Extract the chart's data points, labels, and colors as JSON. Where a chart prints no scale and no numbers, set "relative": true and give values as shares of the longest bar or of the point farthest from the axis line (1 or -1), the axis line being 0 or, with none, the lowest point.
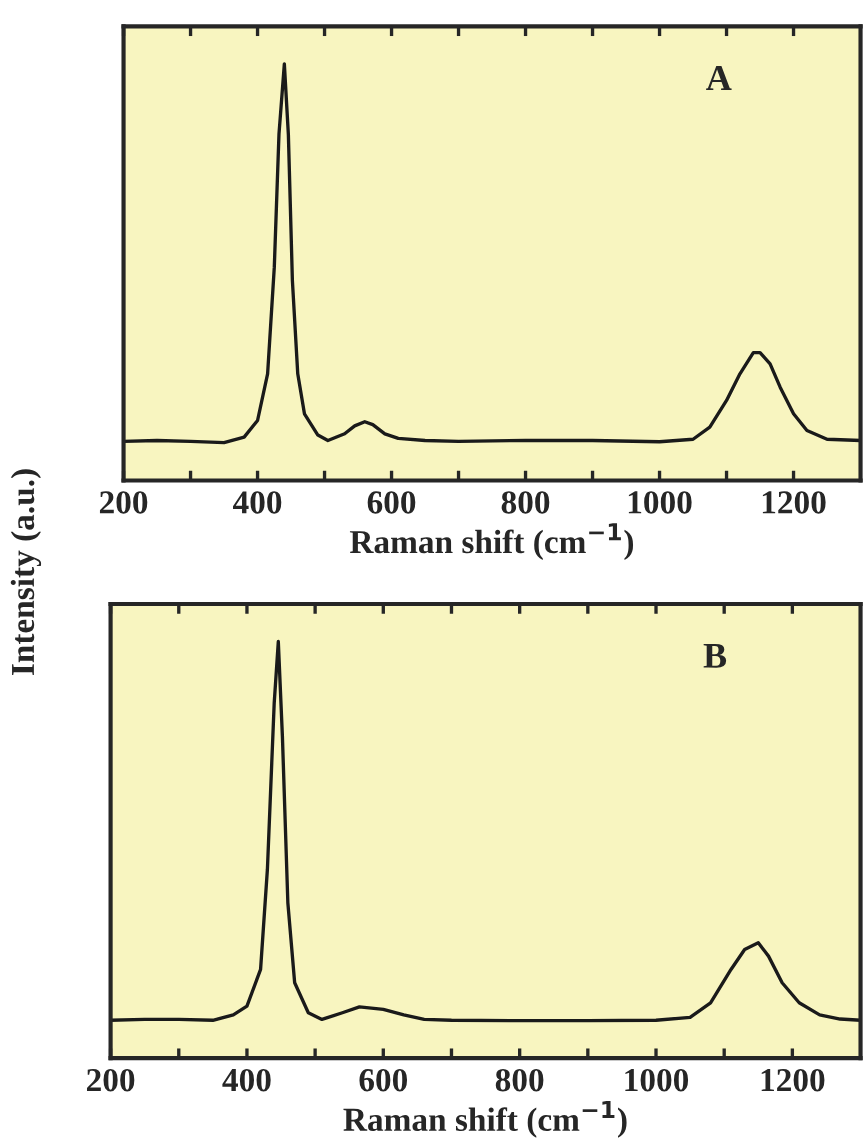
{
  "chart_data": [
    {
      "type": "line",
      "relative": true,
      "ylabel": "Intensity (a.u.)",
      "xlabel": "Raman shift (cm$^{−1}$)",
      "annotations": [
        "A"
      ],
      "tick_labels": "x",
      "xlim": [
        200,
        1300
      ],
      "xticks": [
        200,
        {
          "value": 300,
          "label": null
        },
        400,
        {
          "value": 500,
          "label": null
        },
        600,
        {
          "value": 700,
          "label": null
        },
        800,
        {
          "value": 900,
          "label": null
        },
        1000,
        {
          "value": 1100,
          "label": null
        },
        1200
      ],
      "series": [
        {
          "color": "#1a1a1a",
          "x": [
            200,
            250,
            300,
            350,
            380,
            400,
            415,
            425,
            432,
            440,
            446,
            452,
            460,
            470,
            490,
            505,
            530,
            545,
            560,
            572,
            590,
            610,
            650,
            700,
            800,
            900,
            1000,
            1050,
            1075,
            1100,
            1120,
            1140,
            1150,
            1165,
            1180,
            1200,
            1220,
            1250,
            1300
          ],
          "values": [
            0.094,
            0.096,
            0.094,
            0.091,
            0.104,
            0.144,
            0.256,
            0.512,
            0.832,
            1.0,
            0.83,
            0.48,
            0.256,
            0.16,
            0.109,
            0.096,
            0.112,
            0.131,
            0.141,
            0.134,
            0.112,
            0.101,
            0.096,
            0.094,
            0.096,
            0.096,
            0.093,
            0.099,
            0.128,
            0.192,
            0.256,
            0.307,
            0.307,
            0.28,
            0.224,
            0.16,
            0.12,
            0.099,
            0.096
          ]
        }
      ]
    },
    {
      "type": "line",
      "relative": true,
      "xlabel": "Raman shift (cm$^{−1}$)",
      "annotations": [
        "B"
      ],
      "tick_labels": "x",
      "xlim": [
        200,
        1300
      ],
      "xticks": [
        200,
        {
          "value": 300,
          "label": null
        },
        400,
        {
          "value": 500,
          "label": null
        },
        600,
        {
          "value": 700,
          "label": null
        },
        800,
        {
          "value": 900,
          "label": null
        },
        1000,
        {
          "value": 1100,
          "label": null
        },
        1200
      ],
      "series": [
        {
          "color": "#1a1a1a",
          "x": [
            200,
            250,
            300,
            350,
            380,
            400,
            420,
            430,
            440,
            446,
            452,
            460,
            470,
            490,
            510,
            540,
            565,
            600,
            630,
            660,
            700,
            800,
            900,
            1000,
            1050,
            1080,
            1110,
            1130,
            1150,
            1165,
            1185,
            1210,
            1240,
            1270,
            1300
          ],
          "values": [
            0.091,
            0.093,
            0.093,
            0.091,
            0.104,
            0.125,
            0.213,
            0.453,
            0.853,
            1.0,
            0.773,
            0.373,
            0.181,
            0.109,
            0.093,
            0.109,
            0.123,
            0.117,
            0.104,
            0.093,
            0.091,
            0.09,
            0.09,
            0.091,
            0.098,
            0.133,
            0.213,
            0.261,
            0.277,
            0.245,
            0.181,
            0.133,
            0.104,
            0.094,
            0.091
          ]
        }
      ]
    }
  ]
}
